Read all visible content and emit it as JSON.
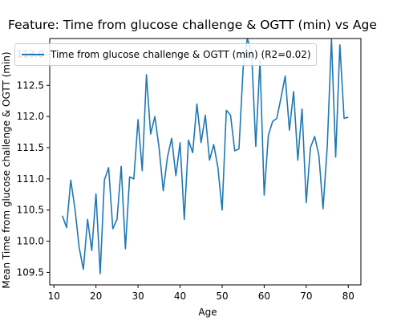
{
  "chart_data": {
    "type": "line",
    "title": "Feature: Time from glucose challenge & OGTT (min) vs Age",
    "xlabel": "Age",
    "ylabel": "Mean Time from glucose challenge & OGTT (min)",
    "xlim": [
      9,
      83
    ],
    "ylim": [
      109.3,
      113.25
    ],
    "xticks": [
      10,
      20,
      30,
      40,
      50,
      60,
      70,
      80
    ],
    "yticks": [
      109.5,
      110.0,
      110.5,
      111.0,
      111.5,
      112.0,
      112.5,
      113.0
    ],
    "yticklabels": [
      "109.5",
      "110.0",
      "110.5",
      "111.0",
      "111.5",
      "112.0",
      "112.5",
      "113.0"
    ],
    "legend": "upper-left",
    "grid": false,
    "series": [
      {
        "name": "Time from glucose challenge & OGTT (min) (R2=0.02)",
        "color": "#1f77b4",
        "x": [
          12,
          13,
          14,
          15,
          16,
          17,
          18,
          19,
          20,
          21,
          22,
          23,
          24,
          25,
          26,
          27,
          28,
          29,
          30,
          31,
          32,
          33,
          34,
          35,
          36,
          37,
          38,
          39,
          40,
          41,
          42,
          43,
          44,
          45,
          46,
          47,
          48,
          49,
          50,
          51,
          52,
          53,
          54,
          55,
          56,
          57,
          58,
          59,
          60,
          61,
          62,
          63,
          64,
          65,
          66,
          67,
          68,
          69,
          70,
          71,
          72,
          73,
          74,
          75,
          76,
          77,
          78,
          79,
          80
        ],
        "y": [
          110.41,
          110.22,
          110.98,
          110.52,
          109.9,
          109.55,
          110.35,
          109.85,
          110.76,
          109.48,
          110.98,
          111.18,
          110.2,
          110.35,
          111.2,
          109.88,
          111.03,
          111.0,
          111.95,
          111.13,
          112.67,
          111.72,
          112.0,
          111.5,
          110.81,
          111.35,
          111.65,
          111.05,
          111.58,
          110.35,
          111.62,
          111.42,
          112.2,
          111.58,
          112.02,
          111.3,
          111.55,
          111.18,
          110.5,
          112.1,
          112.02,
          111.45,
          111.48,
          112.78,
          113.25,
          113.03,
          111.52,
          112.9,
          110.74,
          111.7,
          111.92,
          111.97,
          112.3,
          112.65,
          111.78,
          112.4,
          111.3,
          112.12,
          110.62,
          111.5,
          111.68,
          111.38,
          110.52,
          111.52,
          113.25,
          111.35,
          113.15,
          111.97,
          111.99
        ]
      }
    ]
  }
}
